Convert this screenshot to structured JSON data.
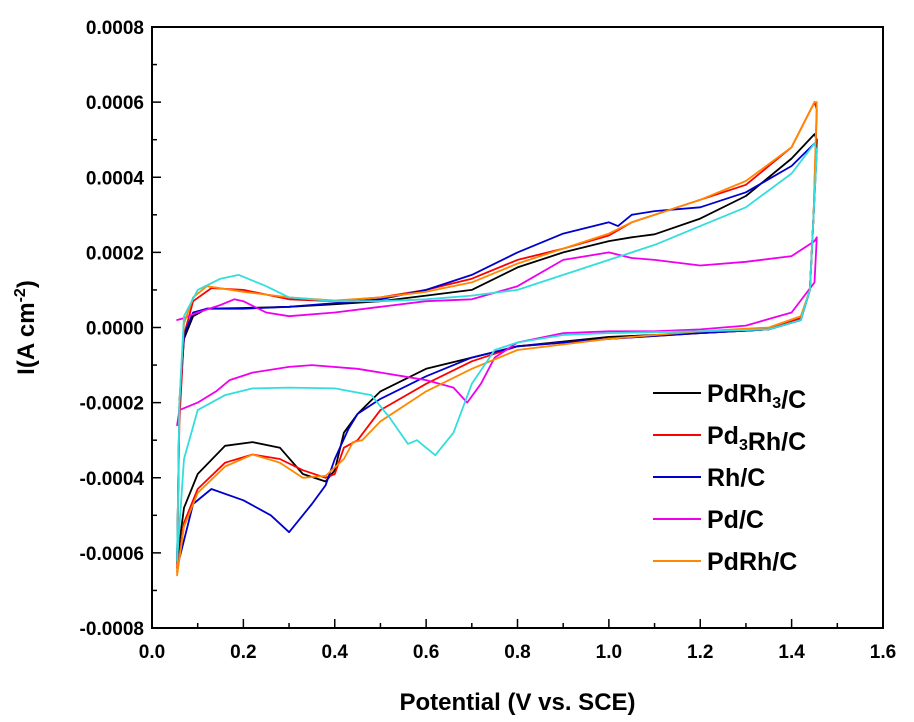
{
  "chart_data": {
    "type": "line",
    "xlabel": "Potential (V vs. SCE)",
    "ylabel": {
      "base": "I(A cm",
      "sup": "-2",
      "end": ")"
    },
    "xlim": [
      0.0,
      1.6
    ],
    "ylim": [
      -0.0008,
      0.0008
    ],
    "xticks": [
      "0.0",
      "0.2",
      "0.4",
      "0.6",
      "0.8",
      "1.0",
      "1.2",
      "1.4",
      "1.6"
    ],
    "yticks": [
      "-0.0008",
      "-0.0006",
      "-0.0004",
      "-0.0002",
      "0.0000",
      "0.0002",
      "0.0004",
      "0.0006",
      "0.0008"
    ],
    "grid": false,
    "legend_position": "bottom-right",
    "series": [
      {
        "name": "PdRh3/C",
        "label": [
          {
            "t": "PdRh"
          },
          {
            "t": "3",
            "sub": true
          },
          {
            "t": "/C"
          }
        ],
        "color": "#000000",
        "anodic": [
          [
            0.055,
            -0.00062
          ],
          [
            0.06,
            -0.0002
          ],
          [
            0.07,
            -3e-05
          ],
          [
            0.09,
            3e-05
          ],
          [
            0.12,
            5e-05
          ],
          [
            0.2,
            5.2e-05
          ],
          [
            0.3,
            5.5e-05
          ],
          [
            0.4,
            6.2e-05
          ],
          [
            0.5,
            7e-05
          ],
          [
            0.6,
            8.5e-05
          ],
          [
            0.7,
            0.0001
          ],
          [
            0.8,
            0.00016
          ],
          [
            0.9,
            0.0002
          ],
          [
            1.0,
            0.00023
          ],
          [
            1.05,
            0.00024
          ],
          [
            1.1,
            0.000248
          ],
          [
            1.2,
            0.00029
          ],
          [
            1.3,
            0.00035
          ],
          [
            1.4,
            0.00045
          ],
          [
            1.45,
            0.000515
          ]
        ],
        "cathodic": [
          [
            1.455,
            0.0005
          ],
          [
            1.448,
            0.0003
          ],
          [
            1.44,
            0.0001
          ],
          [
            1.42,
            2e-05
          ],
          [
            1.35,
            -5e-06
          ],
          [
            1.2,
            -1.5e-05
          ],
          [
            1.0,
            -2.5e-05
          ],
          [
            0.8,
            -5e-05
          ],
          [
            0.7,
            -8e-05
          ],
          [
            0.6,
            -0.00011
          ],
          [
            0.5,
            -0.00017
          ],
          [
            0.45,
            -0.00023
          ],
          [
            0.42,
            -0.00028
          ],
          [
            0.4,
            -0.00038
          ],
          [
            0.38,
            -0.00041
          ],
          [
            0.33,
            -0.00039
          ],
          [
            0.28,
            -0.00032
          ],
          [
            0.22,
            -0.000305
          ],
          [
            0.16,
            -0.000315
          ],
          [
            0.1,
            -0.00039
          ],
          [
            0.07,
            -0.00048
          ],
          [
            0.055,
            -0.00062
          ]
        ]
      },
      {
        "name": "Pd3Rh/C",
        "label": [
          {
            "t": "Pd"
          },
          {
            "t": "3",
            "sub": true
          },
          {
            "t": "Rh/C"
          }
        ],
        "color": "#ff0000",
        "anodic": [
          [
            0.055,
            -0.00064
          ],
          [
            0.06,
            -0.00025
          ],
          [
            0.07,
            -2e-05
          ],
          [
            0.09,
            7e-05
          ],
          [
            0.13,
            0.000105
          ],
          [
            0.2,
            0.0001
          ],
          [
            0.3,
            7.5e-05
          ],
          [
            0.4,
            7e-05
          ],
          [
            0.5,
            8e-05
          ],
          [
            0.6,
            0.0001
          ],
          [
            0.7,
            0.00013
          ],
          [
            0.8,
            0.00018
          ],
          [
            0.9,
            0.00021
          ],
          [
            1.0,
            0.000245
          ],
          [
            1.05,
            0.00028
          ],
          [
            1.1,
            0.0003
          ],
          [
            1.2,
            0.00034
          ],
          [
            1.3,
            0.00038
          ],
          [
            1.4,
            0.00048
          ],
          [
            1.45,
            0.0006
          ]
        ],
        "cathodic": [
          [
            1.455,
            0.00058
          ],
          [
            1.448,
            0.0003
          ],
          [
            1.44,
            0.0001
          ],
          [
            1.42,
            2.5e-05
          ],
          [
            1.35,
            -5e-06
          ],
          [
            1.2,
            -1.5e-05
          ],
          [
            1.0,
            -3e-05
          ],
          [
            0.8,
            -5e-05
          ],
          [
            0.7,
            -9e-05
          ],
          [
            0.6,
            -0.00015
          ],
          [
            0.5,
            -0.00022
          ],
          [
            0.45,
            -0.0003
          ],
          [
            0.42,
            -0.00032
          ],
          [
            0.4,
            -0.00039
          ],
          [
            0.38,
            -0.0004
          ],
          [
            0.33,
            -0.00038
          ],
          [
            0.28,
            -0.00035
          ],
          [
            0.22,
            -0.000338
          ],
          [
            0.16,
            -0.00036
          ],
          [
            0.1,
            -0.00043
          ],
          [
            0.07,
            -0.00052
          ],
          [
            0.055,
            -0.00065
          ]
        ]
      },
      {
        "name": "Rh/C",
        "label": [
          {
            "t": "Rh/C"
          }
        ],
        "color": "#0000cc",
        "anodic": [
          [
            0.055,
            -0.00063
          ],
          [
            0.06,
            -0.0002
          ],
          [
            0.07,
            -2e-05
          ],
          [
            0.09,
            4e-05
          ],
          [
            0.12,
            5e-05
          ],
          [
            0.2,
            5e-05
          ],
          [
            0.3,
            5.5e-05
          ],
          [
            0.4,
            6.5e-05
          ],
          [
            0.5,
            7.5e-05
          ],
          [
            0.6,
            0.0001
          ],
          [
            0.7,
            0.00014
          ],
          [
            0.8,
            0.0002
          ],
          [
            0.9,
            0.00025
          ],
          [
            1.0,
            0.00028
          ],
          [
            1.02,
            0.00027
          ],
          [
            1.05,
            0.0003
          ],
          [
            1.1,
            0.00031
          ],
          [
            1.2,
            0.00032
          ],
          [
            1.3,
            0.00036
          ],
          [
            1.4,
            0.00043
          ],
          [
            1.45,
            0.00049
          ]
        ],
        "cathodic": [
          [
            1.455,
            0.00047
          ],
          [
            1.448,
            0.0003
          ],
          [
            1.44,
            0.0001
          ],
          [
            1.42,
            2e-05
          ],
          [
            1.35,
            -5e-06
          ],
          [
            1.2,
            -1.5e-05
          ],
          [
            1.0,
            -3e-05
          ],
          [
            0.8,
            -5e-05
          ],
          [
            0.7,
            -8e-05
          ],
          [
            0.6,
            -0.00013
          ],
          [
            0.5,
            -0.00019
          ],
          [
            0.45,
            -0.00023
          ],
          [
            0.43,
            -0.00027
          ],
          [
            0.4,
            -0.00035
          ],
          [
            0.38,
            -0.00042
          ],
          [
            0.35,
            -0.00047
          ],
          [
            0.3,
            -0.000545
          ],
          [
            0.26,
            -0.0005
          ],
          [
            0.2,
            -0.00046
          ],
          [
            0.13,
            -0.00043
          ],
          [
            0.09,
            -0.00047
          ],
          [
            0.055,
            -0.00064
          ]
        ]
      },
      {
        "name": "Pd/C",
        "label": [
          {
            "t": "Pd/C"
          }
        ],
        "color": "#ee00ee",
        "anodic": [
          [
            0.055,
            -0.00026
          ],
          [
            0.06,
            -0.00022
          ],
          [
            0.1,
            -0.0002
          ],
          [
            0.14,
            -0.00017
          ],
          [
            0.17,
            -0.00014
          ],
          [
            0.22,
            -0.00012
          ],
          [
            0.3,
            -0.000105
          ],
          [
            0.35,
            -0.0001
          ],
          [
            0.45,
            -0.00011
          ],
          [
            0.55,
            -0.00013
          ],
          [
            0.6,
            -0.00014
          ],
          [
            0.66,
            -0.00016
          ],
          [
            0.69,
            -0.0002
          ],
          [
            0.72,
            -0.00015
          ],
          [
            0.75,
            -8e-05
          ],
          [
            0.8,
            -4e-05
          ],
          [
            0.9,
            -1.5e-05
          ],
          [
            1.0,
            -1e-05
          ],
          [
            1.1,
            -1e-05
          ],
          [
            1.2,
            -5e-06
          ],
          [
            1.3,
            5e-06
          ],
          [
            1.4,
            4e-05
          ],
          [
            1.45,
            0.00012
          ]
        ],
        "cathodic": [
          [
            1.455,
            0.00024
          ],
          [
            1.45,
            0.00023
          ],
          [
            1.4,
            0.00019
          ],
          [
            1.3,
            0.000175
          ],
          [
            1.2,
            0.000165
          ],
          [
            1.1,
            0.00018
          ],
          [
            1.05,
            0.000185
          ],
          [
            1.0,
            0.0002
          ],
          [
            0.9,
            0.00018
          ],
          [
            0.8,
            0.00011
          ],
          [
            0.7,
            7.5e-05
          ],
          [
            0.6,
            7e-05
          ],
          [
            0.5,
            5.5e-05
          ],
          [
            0.4,
            4e-05
          ],
          [
            0.3,
            3e-05
          ],
          [
            0.25,
            4e-05
          ],
          [
            0.2,
            7e-05
          ],
          [
            0.18,
            7.5e-05
          ],
          [
            0.15,
            6e-05
          ],
          [
            0.1,
            4e-05
          ],
          [
            0.07,
            2.5e-05
          ],
          [
            0.055,
            2e-05
          ]
        ]
      },
      {
        "name": "PdRh/C",
        "label": [
          {
            "t": "PdRh/C"
          }
        ],
        "color": "#ff8800",
        "anodic": [
          [
            0.055,
            -0.00066
          ],
          [
            0.06,
            -0.0002
          ],
          [
            0.07,
            1e-05
          ],
          [
            0.09,
            8e-05
          ],
          [
            0.12,
            0.00011
          ],
          [
            0.2,
            9.5e-05
          ],
          [
            0.3,
            8e-05
          ],
          [
            0.4,
            7.2e-05
          ],
          [
            0.5,
            8e-05
          ],
          [
            0.6,
            9.5e-05
          ],
          [
            0.7,
            0.00012
          ],
          [
            0.8,
            0.00017
          ],
          [
            0.9,
            0.00021
          ],
          [
            1.0,
            0.00025
          ],
          [
            1.05,
            0.00028
          ],
          [
            1.1,
            0.0003
          ],
          [
            1.2,
            0.00034
          ],
          [
            1.3,
            0.00039
          ],
          [
            1.4,
            0.00048
          ],
          [
            1.45,
            0.0006
          ]
        ],
        "cathodic": [
          [
            1.455,
            0.0006
          ],
          [
            1.448,
            0.0003
          ],
          [
            1.44,
            0.0001
          ],
          [
            1.42,
            3e-05
          ],
          [
            1.35,
            0
          ],
          [
            1.2,
            -1e-05
          ],
          [
            1.0,
            -3e-05
          ],
          [
            0.8,
            -6e-05
          ],
          [
            0.7,
            -0.00011
          ],
          [
            0.6,
            -0.00017
          ],
          [
            0.5,
            -0.00025
          ],
          [
            0.46,
            -0.0003
          ],
          [
            0.44,
            -0.000305
          ],
          [
            0.42,
            -0.00035
          ],
          [
            0.38,
            -0.000395
          ],
          [
            0.33,
            -0.0004
          ],
          [
            0.28,
            -0.00036
          ],
          [
            0.22,
            -0.000338
          ],
          [
            0.16,
            -0.00037
          ],
          [
            0.1,
            -0.00044
          ],
          [
            0.07,
            -0.00053
          ],
          [
            0.055,
            -0.00066
          ]
        ]
      },
      {
        "name": "",
        "label": [],
        "color": "#33dddd",
        "anodic": [
          [
            0.055,
            -0.00062
          ],
          [
            0.06,
            -0.0002
          ],
          [
            0.07,
            3e-05
          ],
          [
            0.1,
            0.0001
          ],
          [
            0.15,
            0.00013
          ],
          [
            0.19,
            0.00014
          ],
          [
            0.25,
            0.00011
          ],
          [
            0.3,
            8e-05
          ],
          [
            0.4,
            7e-05
          ],
          [
            0.5,
            7e-05
          ],
          [
            0.6,
            7.5e-05
          ],
          [
            0.7,
            8.5e-05
          ],
          [
            0.8,
            0.0001
          ],
          [
            0.9,
            0.00014
          ],
          [
            1.0,
            0.00018
          ],
          [
            1.1,
            0.00022
          ],
          [
            1.2,
            0.00027
          ],
          [
            1.3,
            0.00032
          ],
          [
            1.4,
            0.00041
          ],
          [
            1.45,
            0.00049
          ]
        ],
        "cathodic": [
          [
            1.455,
            0.00047
          ],
          [
            1.448,
            0.0003
          ],
          [
            1.44,
            0.0001
          ],
          [
            1.42,
            2e-05
          ],
          [
            1.35,
            -5e-06
          ],
          [
            1.2,
            -1e-05
          ],
          [
            1.0,
            -1.5e-05
          ],
          [
            0.9,
            -2e-05
          ],
          [
            0.8,
            -4e-05
          ],
          [
            0.75,
            -6e-05
          ],
          [
            0.7,
            -0.00015
          ],
          [
            0.66,
            -0.00028
          ],
          [
            0.62,
            -0.00034
          ],
          [
            0.6,
            -0.00032
          ],
          [
            0.58,
            -0.0003
          ],
          [
            0.56,
            -0.00031
          ],
          [
            0.52,
            -0.00024
          ],
          [
            0.48,
            -0.00018
          ],
          [
            0.4,
            -0.000162
          ],
          [
            0.3,
            -0.00016
          ],
          [
            0.22,
            -0.000162
          ],
          [
            0.16,
            -0.00018
          ],
          [
            0.1,
            -0.00022
          ],
          [
            0.07,
            -0.00035
          ],
          [
            0.055,
            -0.00062
          ]
        ]
      }
    ]
  }
}
